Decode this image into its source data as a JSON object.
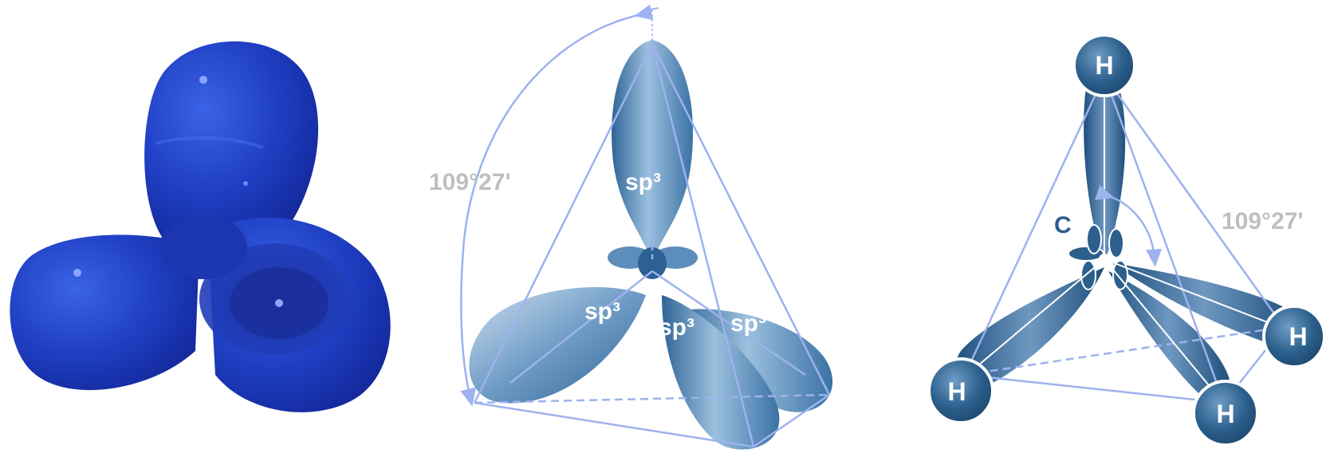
{
  "panels": [
    {
      "id": "panel-1",
      "kind": "sp3-orbital-model"
    },
    {
      "id": "panel-2",
      "kind": "sp3-tetrahedral-orbitals",
      "angle_label": "109°27'",
      "lobe_labels": [
        "sp³",
        "sp³",
        "sp³",
        "sp³"
      ]
    },
    {
      "id": "panel-3",
      "kind": "methane-tetrahedral-structure",
      "angle_label": "109°27'",
      "center_atom": "C",
      "atoms": [
        "H",
        "H",
        "H",
        "H"
      ]
    }
  ],
  "colors": {
    "model_blue": "#1f3fc4",
    "orbital_blue": "#4a7fb0",
    "orbital_light": "#cfe0f0",
    "frame_line": "#9db2ee",
    "atom_fill": "#2c5f8c",
    "angle_text": "#bfbfbf"
  }
}
